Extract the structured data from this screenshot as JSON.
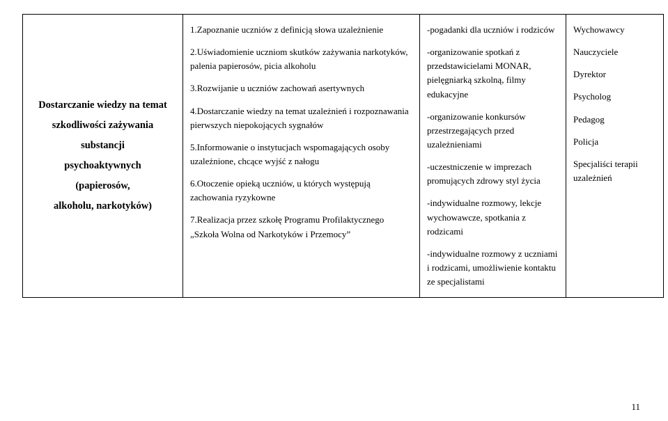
{
  "table": {
    "col1_lines": [
      "Dostarczanie wiedzy na temat",
      "szkodliwości zażywania",
      "substancji",
      "psychoaktywnych",
      "(papierosów,",
      "alkoholu, narkotyków)"
    ],
    "col2_items": [
      "1.Zapoznanie uczniów z definicją słowa uzależnienie",
      "2.Uświadomienie uczniom skutków zażywania narkotyków, palenia papierosów, picia alkoholu",
      "3.Rozwijanie u uczniów zachowań asertywnych",
      "4.Dostarczanie wiedzy na temat uzależnień i rozpoznawania pierwszych niepokojących sygnałów",
      "5.Informowanie o instytucjach wspomagających osoby uzależnione, chcące wyjść z nałogu",
      "6.Otoczenie opieką uczniów, u których występują zachowania ryzykowne",
      "7.Realizacja przez szkołę Programu Profilaktycznego „Szkoła Wolna od Narkotyków i Przemocy”"
    ],
    "col3_items": [
      "-pogadanki dla uczniów i rodziców",
      "-organizowanie spotkań z przedstawicielami MONAR, pielęgniarką szkolną, filmy edukacyjne",
      "-organizowanie konkursów przestrzegających przed uzależnieniami",
      "-uczestniczenie w imprezach promujących zdrowy styl życia",
      "-indywidualne rozmowy, lekcje wychowawcze, spotkania z rodzicami",
      "-indywidualne rozmowy z uczniami i rodzicami, umożliwienie kontaktu ze specjalistami"
    ],
    "col4_items": [
      "Wychowawcy",
      "Nauczyciele",
      "Dyrektor",
      "Psycholog",
      "Pedagog",
      "Policja",
      "Specjaliści terapii uzależnień"
    ]
  },
  "page_number": "11",
  "colors": {
    "text": "#000000",
    "border": "#000000",
    "background": "#ffffff"
  }
}
